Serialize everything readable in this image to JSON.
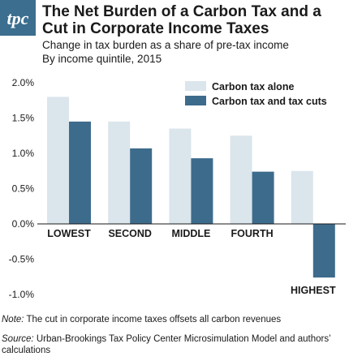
{
  "header": {
    "logo_text": "tpc",
    "title": "The Net Burden of a Carbon Tax and a Cut in Corporate Income Taxes",
    "subtitle_line1": "Change in tax burden as a share of pre-tax income",
    "subtitle_line2": "By income quintile, 2015"
  },
  "colors": {
    "brand": "#3b6e8f",
    "series_light": "#dbe5ec",
    "series_dark": "#3d6b8c"
  },
  "chart_data": {
    "type": "bar",
    "categories": [
      "LOWEST",
      "SECOND",
      "MIDDLE",
      "FOURTH",
      "HIGHEST"
    ],
    "series": [
      {
        "name": "Carbon tax alone",
        "values": [
          1.8,
          1.45,
          1.35,
          1.25,
          0.75
        ]
      },
      {
        "name": "Carbon tax and tax cuts",
        "values": [
          1.45,
          1.07,
          0.93,
          0.74,
          -0.76
        ]
      }
    ],
    "yticks": [
      "2.0%",
      "1.5%",
      "1.0%",
      "0.5%",
      "0.0%",
      "-0.5%",
      "-1.0%"
    ],
    "ylim": [
      -1.0,
      2.0
    ],
    "grid": false,
    "legend_position": "top-right",
    "title": "",
    "xlabel": "",
    "ylabel": ""
  },
  "footer": {
    "note_label": "Note:",
    "note_text": " The cut in corporate income taxes offsets all carbon revenues",
    "source_label": "Source:",
    "source_text": " Urban-Brookings Tax Policy Center Microsimulation Model and authors’ calculations"
  }
}
